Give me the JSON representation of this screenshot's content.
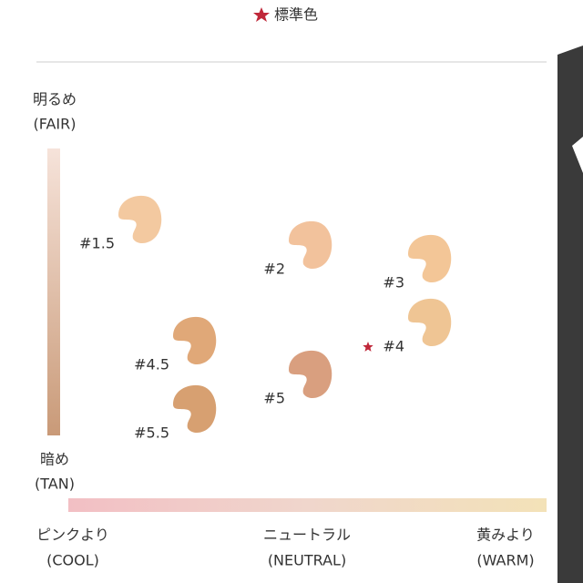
{
  "legend": {
    "label": "標準色"
  },
  "vertical_axis": {
    "top": "明るめ",
    "top_en": "(FAIR)",
    "bottom": "暗め",
    "bottom_en": "(TAN)"
  },
  "horizontal_axis": {
    "left": "ピンクより",
    "left_en": "(COOL)",
    "middle": "ニュートラル",
    "middle_en": "(NEUTRAL)",
    "right": "黄みより",
    "right_en": "(WARM)"
  },
  "swatches": [
    {
      "label": "#1.5",
      "color": "#f3c9a0",
      "standard": false
    },
    {
      "label": "#2",
      "color": "#f2c29c",
      "standard": false
    },
    {
      "label": "#3",
      "color": "#f3c697",
      "standard": false
    },
    {
      "label": "#4",
      "color": "#efc594",
      "standard": true
    },
    {
      "label": "#4.5",
      "color": "#e0a878",
      "standard": false
    },
    {
      "label": "#5",
      "color": "#d99f7f",
      "standard": false
    },
    {
      "label": "#5.5",
      "color": "#d7a071",
      "standard": false
    }
  ]
}
